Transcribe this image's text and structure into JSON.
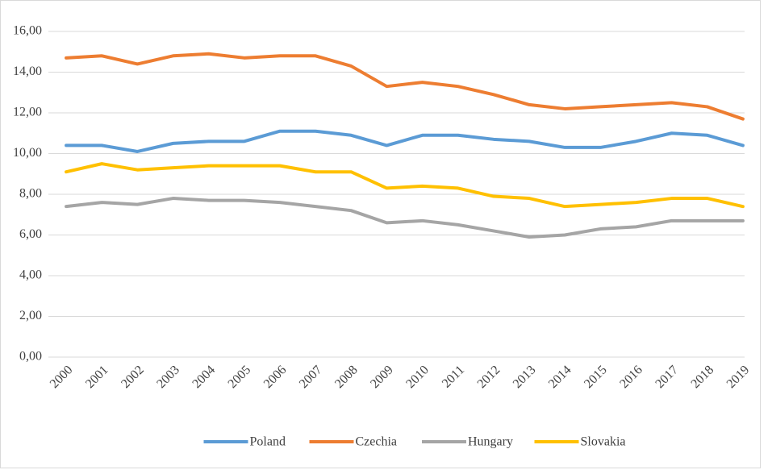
{
  "chart_data": {
    "type": "line",
    "categories": [
      "2000",
      "2001",
      "2002",
      "2003",
      "2004",
      "2005",
      "2006",
      "2007",
      "2008",
      "2009",
      "2010",
      "2011",
      "2012",
      "2013",
      "2014",
      "2015",
      "2016",
      "2017",
      "2018",
      "2019"
    ],
    "series": [
      {
        "name": "Poland",
        "color": "#5b9bd5",
        "values": [
          10.4,
          10.4,
          10.1,
          10.5,
          10.6,
          10.6,
          11.1,
          11.1,
          10.9,
          10.4,
          10.9,
          10.9,
          10.7,
          10.6,
          10.3,
          10.3,
          10.6,
          11.0,
          10.9,
          10.4
        ]
      },
      {
        "name": "Czechia",
        "color": "#ed7d31",
        "values": [
          14.7,
          14.8,
          14.4,
          14.8,
          14.9,
          14.7,
          14.8,
          14.8,
          14.3,
          13.3,
          13.5,
          13.3,
          12.9,
          12.4,
          12.2,
          12.3,
          12.4,
          12.5,
          12.3,
          11.7
        ]
      },
      {
        "name": "Hungary",
        "color": "#a5a5a5",
        "values": [
          7.4,
          7.6,
          7.5,
          7.8,
          7.7,
          7.7,
          7.6,
          7.4,
          7.2,
          6.6,
          6.7,
          6.5,
          6.2,
          5.9,
          6.0,
          6.3,
          6.4,
          6.7,
          6.7,
          6.7
        ]
      },
      {
        "name": "Slovakia",
        "color": "#ffc000",
        "values": [
          9.1,
          9.5,
          9.2,
          9.3,
          9.4,
          9.4,
          9.4,
          9.1,
          9.1,
          8.3,
          8.4,
          8.3,
          7.9,
          7.8,
          7.4,
          7.5,
          7.6,
          7.8,
          7.8,
          7.4
        ]
      }
    ],
    "ylim": [
      0,
      16
    ],
    "yticks": [
      {
        "value": 0,
        "label": "0,00"
      },
      {
        "value": 2,
        "label": "2,00"
      },
      {
        "value": 4,
        "label": "4,00"
      },
      {
        "value": 6,
        "label": "6,00"
      },
      {
        "value": 8,
        "label": "8,00"
      },
      {
        "value": 10,
        "label": "10,00"
      },
      {
        "value": 12,
        "label": "12,00"
      },
      {
        "value": 14,
        "label": "14,00"
      },
      {
        "value": 16,
        "label": "16,00"
      }
    ],
    "grid": true,
    "legend": "bottom"
  }
}
